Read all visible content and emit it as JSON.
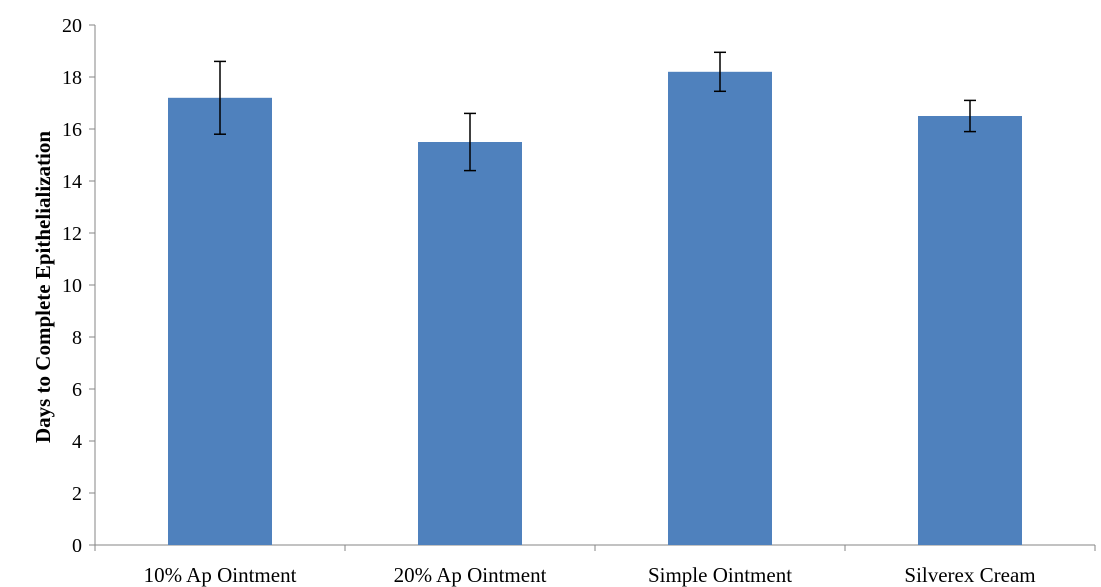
{
  "chart_data": {
    "type": "bar",
    "title": "",
    "xlabel": "",
    "ylabel": "Days to Complete Epithelialization",
    "categories": [
      "10% Ap Ointment",
      "20% Ap Ointment",
      "Simple Ointment",
      "Silverex Cream"
    ],
    "series": [
      {
        "values": [
          17.2,
          15.5,
          18.2,
          16.5
        ],
        "error": [
          1.4,
          1.1,
          0.75,
          0.6
        ]
      }
    ],
    "ylim": [
      0,
      20
    ],
    "yticks": [
      0,
      2,
      4,
      6,
      8,
      10,
      12,
      14,
      16,
      18,
      20
    ],
    "ytick_labels": [
      "0",
      "2",
      "4",
      "6",
      "8",
      "10",
      "12",
      "14",
      "16",
      "18",
      "20"
    ],
    "bar_color": "#4f81bd",
    "grid": false,
    "legend": "none"
  }
}
